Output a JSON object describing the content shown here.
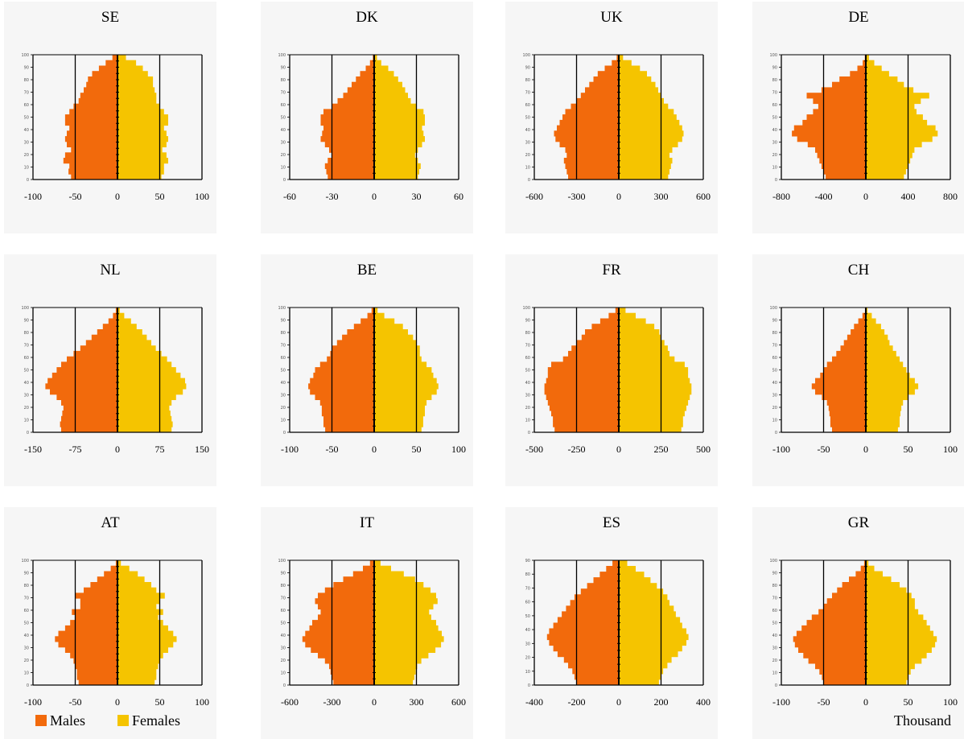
{
  "legend": {
    "males_label": "Males",
    "females_label": "Females"
  },
  "unit_label": "Thousand",
  "colors": {
    "males": "#f26a0c",
    "females": "#f5c400",
    "axis": "#000000",
    "panel_bg": "#f6f6f6"
  },
  "chart_data": [
    {
      "type": "bar",
      "orientation": "horizontal",
      "title": "SE",
      "xlim": [
        -100,
        100
      ],
      "xticks": [
        "-100",
        "-50",
        "0",
        "50",
        "100"
      ],
      "ages": [
        0,
        100
      ],
      "series": [
        {
          "name": "Males",
          "values": [
            55,
            58,
            57,
            64,
            62,
            55,
            60,
            62,
            60,
            57,
            62,
            62,
            57,
            52,
            46,
            44,
            40,
            37,
            35,
            30,
            22,
            14,
            6
          ]
        },
        {
          "name": "Females",
          "values": [
            52,
            55,
            55,
            60,
            58,
            53,
            58,
            60,
            58,
            55,
            60,
            60,
            55,
            50,
            46,
            46,
            44,
            42,
            42,
            36,
            30,
            22,
            10
          ]
        }
      ]
    },
    {
      "type": "bar",
      "orientation": "horizontal",
      "title": "DK",
      "xlim": [
        -60,
        60
      ],
      "xticks": [
        "-60",
        "-30",
        "0",
        "30",
        "60"
      ],
      "ages": [
        0,
        100
      ],
      "series": [
        {
          "name": "Males",
          "values": [
            33,
            34,
            35,
            33,
            30,
            32,
            35,
            38,
            37,
            36,
            38,
            38,
            36,
            30,
            26,
            22,
            19,
            16,
            13,
            10,
            6,
            3,
            1
          ]
        },
        {
          "name": "Females",
          "values": [
            31,
            32,
            33,
            31,
            29,
            31,
            34,
            36,
            35,
            34,
            36,
            36,
            35,
            30,
            26,
            24,
            22,
            20,
            17,
            14,
            10,
            5,
            2
          ]
        }
      ]
    },
    {
      "type": "bar",
      "orientation": "horizontal",
      "title": "UK",
      "xlim": [
        -600,
        600
      ],
      "xticks": [
        "-600",
        "-300",
        "0",
        "300",
        "600"
      ],
      "ages": [
        0,
        100
      ],
      "series": [
        {
          "name": "Males",
          "values": [
            360,
            370,
            380,
            390,
            370,
            380,
            420,
            450,
            460,
            440,
            420,
            400,
            380,
            340,
            300,
            270,
            240,
            210,
            180,
            150,
            100,
            50,
            15
          ]
        },
        {
          "name": "Females",
          "values": [
            350,
            360,
            370,
            380,
            360,
            380,
            420,
            450,
            460,
            450,
            430,
            410,
            390,
            350,
            320,
            300,
            280,
            260,
            230,
            200,
            150,
            90,
            30
          ]
        }
      ]
    },
    {
      "type": "bar",
      "orientation": "horizontal",
      "title": "DE",
      "xlim": [
        -800,
        800
      ],
      "xticks": [
        "-800",
        "-400",
        "0",
        "400",
        "800"
      ],
      "ages": [
        0,
        100
      ],
      "series": [
        {
          "name": "Males",
          "values": [
            380,
            400,
            420,
            440,
            460,
            480,
            550,
            650,
            700,
            680,
            600,
            560,
            500,
            450,
            500,
            560,
            420,
            320,
            250,
            150,
            80,
            30,
            10
          ]
        },
        {
          "name": "Females",
          "values": [
            360,
            380,
            400,
            420,
            440,
            460,
            530,
            630,
            680,
            660,
            580,
            540,
            480,
            460,
            520,
            600,
            450,
            360,
            300,
            220,
            150,
            80,
            30
          ]
        }
      ]
    },
    {
      "type": "bar",
      "orientation": "horizontal",
      "title": "NL",
      "xlim": [
        -150,
        150
      ],
      "xticks": [
        "-150",
        "-75",
        "0",
        "75",
        "150"
      ],
      "ages": [
        0,
        100
      ],
      "series": [
        {
          "name": "Males",
          "values": [
            100,
            102,
            100,
            98,
            96,
            100,
            108,
            120,
            128,
            124,
            116,
            108,
            100,
            90,
            78,
            66,
            56,
            46,
            36,
            26,
            16,
            8,
            3
          ]
        },
        {
          "name": "Females",
          "values": [
            96,
            98,
            96,
            94,
            92,
            96,
            104,
            116,
            122,
            120,
            112,
            104,
            96,
            88,
            78,
            68,
            60,
            52,
            44,
            34,
            24,
            12,
            4
          ]
        }
      ]
    },
    {
      "type": "bar",
      "orientation": "horizontal",
      "title": "BE",
      "xlim": [
        -100,
        100
      ],
      "xticks": [
        "-100",
        "-50",
        "0",
        "50",
        "100"
      ],
      "ages": [
        0,
        100
      ],
      "series": [
        {
          "name": "Males",
          "values": [
            58,
            60,
            60,
            62,
            62,
            64,
            70,
            76,
            78,
            76,
            72,
            70,
            64,
            56,
            52,
            50,
            44,
            38,
            32,
            24,
            16,
            8,
            3
          ]
        },
        {
          "name": "Females",
          "values": [
            56,
            58,
            58,
            60,
            60,
            62,
            68,
            74,
            76,
            74,
            70,
            68,
            62,
            56,
            54,
            54,
            50,
            46,
            40,
            34,
            24,
            12,
            4
          ]
        }
      ]
    },
    {
      "type": "bar",
      "orientation": "horizontal",
      "title": "FR",
      "xlim": [
        -500,
        500
      ],
      "xticks": [
        "-500",
        "-250",
        "0",
        "250",
        "500"
      ],
      "ages": [
        0,
        100
      ],
      "series": [
        {
          "name": "Males",
          "values": [
            380,
            390,
            390,
            400,
            410,
            420,
            430,
            440,
            440,
            430,
            420,
            420,
            400,
            330,
            300,
            280,
            250,
            220,
            200,
            160,
            110,
            60,
            20
          ]
        },
        {
          "name": "Females",
          "values": [
            370,
            380,
            380,
            390,
            400,
            410,
            420,
            430,
            430,
            420,
            410,
            410,
            390,
            330,
            300,
            290,
            270,
            250,
            240,
            210,
            160,
            100,
            40
          ]
        }
      ]
    },
    {
      "type": "bar",
      "orientation": "horizontal",
      "title": "CH",
      "xlim": [
        -100,
        100
      ],
      "xticks": [
        "-100",
        "-50",
        "0",
        "50",
        "100"
      ],
      "ages": [
        0,
        100
      ],
      "series": [
        {
          "name": "Males",
          "values": [
            40,
            42,
            42,
            43,
            44,
            46,
            52,
            60,
            64,
            60,
            54,
            50,
            46,
            40,
            35,
            30,
            26,
            22,
            18,
            14,
            9,
            4,
            1
          ]
        },
        {
          "name": "Females",
          "values": [
            38,
            40,
            40,
            41,
            42,
            44,
            50,
            58,
            62,
            58,
            52,
            48,
            44,
            40,
            36,
            32,
            28,
            26,
            22,
            18,
            12,
            7,
            2
          ]
        }
      ]
    },
    {
      "type": "bar",
      "orientation": "horizontal",
      "title": "AT",
      "xlim": [
        -100,
        100
      ],
      "xticks": [
        "-100",
        "-50",
        "0",
        "50",
        "100"
      ],
      "ages": [
        0,
        100
      ],
      "series": [
        {
          "name": "Males",
          "values": [
            46,
            48,
            48,
            50,
            52,
            56,
            62,
            70,
            74,
            70,
            62,
            56,
            50,
            54,
            44,
            44,
            50,
            40,
            32,
            24,
            16,
            8,
            2
          ]
        },
        {
          "name": "Females",
          "values": [
            44,
            46,
            46,
            48,
            50,
            54,
            60,
            66,
            70,
            66,
            60,
            54,
            48,
            54,
            46,
            50,
            56,
            46,
            40,
            32,
            24,
            14,
            4
          ]
        }
      ]
    },
    {
      "type": "bar",
      "orientation": "horizontal",
      "title": "IT",
      "xlim": [
        -600,
        600
      ],
      "xticks": [
        "-600",
        "-300",
        "0",
        "300",
        "600"
      ],
      "ages": [
        0,
        100
      ],
      "series": [
        {
          "name": "Males",
          "values": [
            290,
            300,
            310,
            320,
            350,
            400,
            450,
            490,
            510,
            490,
            460,
            440,
            400,
            380,
            400,
            420,
            400,
            350,
            290,
            220,
            150,
            80,
            30
          ]
        },
        {
          "name": "Females",
          "values": [
            275,
            285,
            295,
            305,
            335,
            385,
            435,
            475,
            495,
            480,
            455,
            440,
            405,
            390,
            420,
            450,
            440,
            400,
            350,
            290,
            210,
            120,
            45
          ]
        }
      ]
    },
    {
      "type": "bar",
      "orientation": "horizontal",
      "title": "ES",
      "xlim": [
        -400,
        400
      ],
      "xticks": [
        "-400",
        "-200",
        "0",
        "200",
        "400"
      ],
      "ages": [
        0,
        90
      ],
      "series": [
        {
          "name": "Males",
          "values": [
            200,
            210,
            220,
            240,
            260,
            290,
            310,
            330,
            340,
            330,
            310,
            290,
            270,
            250,
            230,
            210,
            180,
            150,
            120,
            90,
            60,
            30
          ]
        },
        {
          "name": "Females",
          "values": [
            190,
            200,
            210,
            230,
            250,
            280,
            300,
            320,
            330,
            320,
            300,
            290,
            270,
            260,
            240,
            230,
            210,
            180,
            150,
            120,
            80,
            40
          ]
        }
      ]
    },
    {
      "type": "bar",
      "orientation": "horizontal",
      "title": "GR",
      "xlim": [
        -100,
        100
      ],
      "xticks": [
        "-100",
        "-50",
        "0",
        "50",
        "100"
      ],
      "ages": [
        0,
        100
      ],
      "series": [
        {
          "name": "Males",
          "values": [
            50,
            52,
            55,
            60,
            68,
            74,
            80,
            84,
            86,
            82,
            76,
            70,
            64,
            56,
            50,
            46,
            40,
            34,
            28,
            20,
            12,
            6,
            2
          ]
        },
        {
          "name": "Females",
          "values": [
            48,
            50,
            53,
            58,
            66,
            72,
            78,
            82,
            84,
            80,
            76,
            72,
            68,
            62,
            58,
            58,
            54,
            48,
            40,
            30,
            20,
            10,
            3
          ]
        }
      ]
    }
  ]
}
